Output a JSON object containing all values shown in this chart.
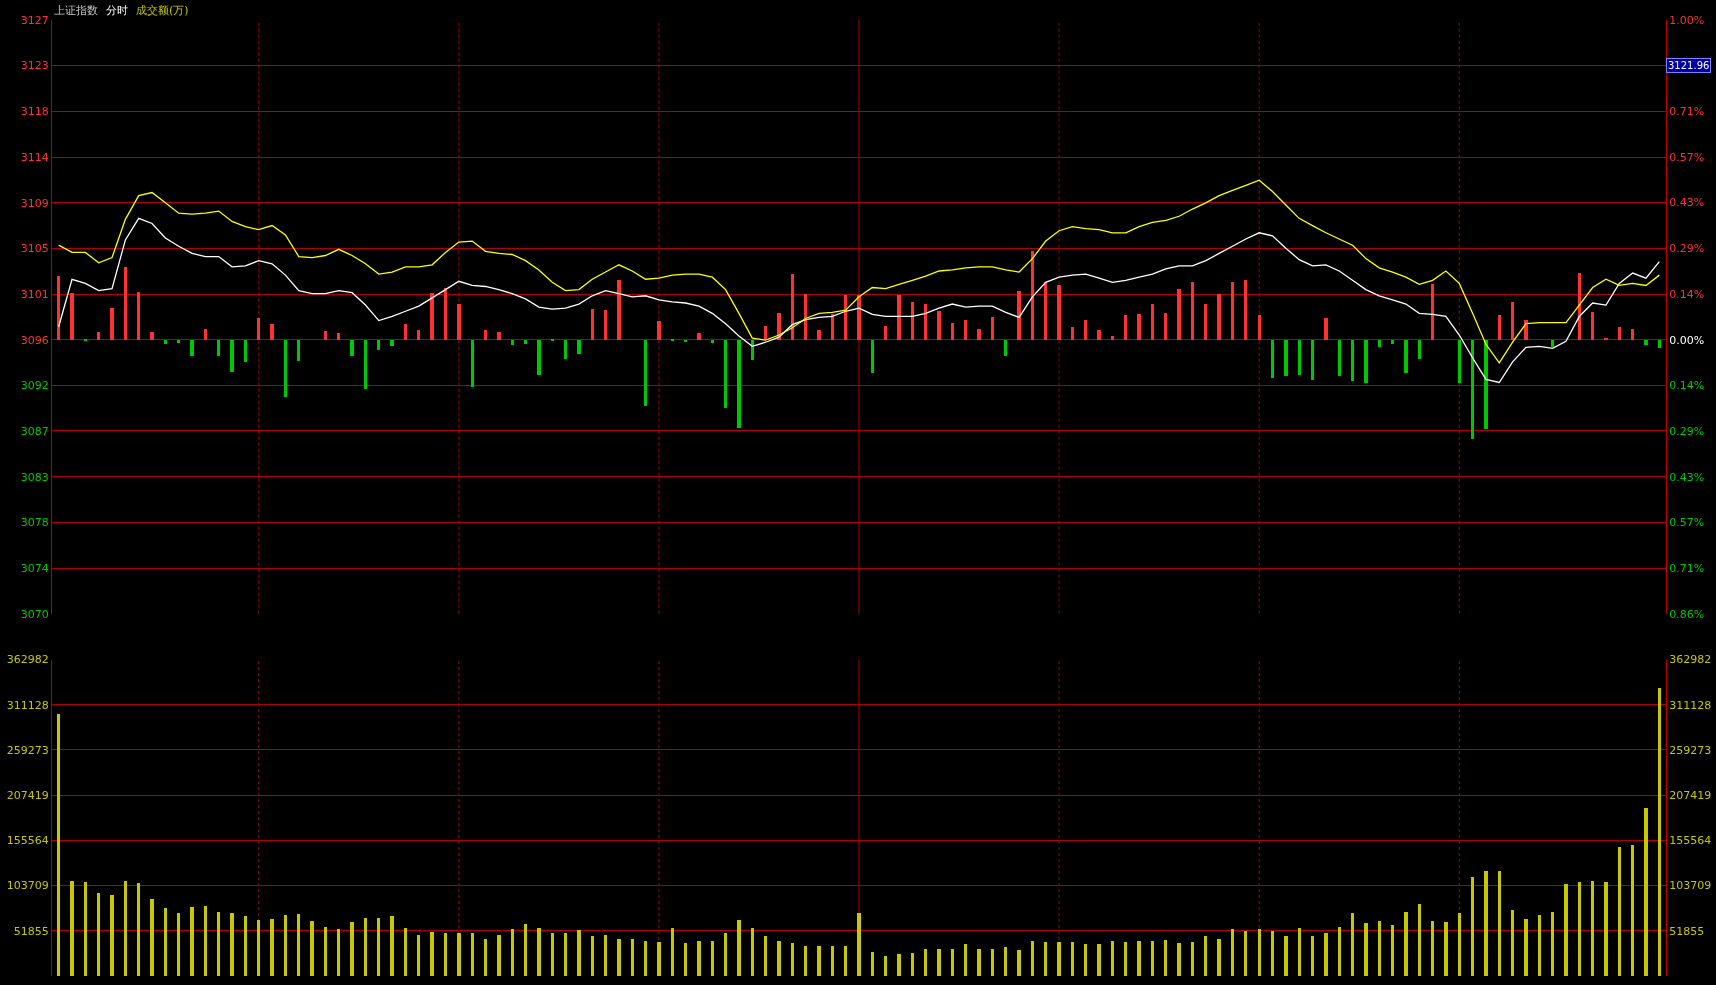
{
  "chart_data": [
    {
      "type": "line",
      "title": "上证指数",
      "subtitle": "分时",
      "categories": [
        null,
        null,
        null,
        null,
        null,
        null,
        null,
        null,
        null,
        null,
        null,
        null,
        null,
        null,
        null,
        null,
        null,
        null,
        null,
        null,
        null,
        null,
        null,
        null,
        null,
        null,
        null,
        null,
        null,
        null,
        null,
        null,
        null,
        null,
        null,
        null,
        null,
        null,
        null,
        null,
        null,
        null,
        null,
        null,
        null,
        null,
        null,
        null,
        null,
        null,
        null,
        null,
        null,
        null,
        null,
        null,
        null,
        null,
        null,
        null,
        null,
        null,
        null,
        null,
        null,
        null,
        null,
        null,
        null,
        null,
        null,
        null,
        null,
        null,
        null,
        null,
        null,
        null,
        null,
        null,
        null,
        null,
        null,
        null,
        null,
        null,
        null,
        null,
        null,
        null,
        null,
        null,
        null,
        null,
        null,
        null,
        null,
        null,
        null,
        null,
        null,
        null,
        null,
        null,
        null,
        null,
        null,
        null,
        null,
        null,
        null,
        null,
        null,
        null,
        null,
        null,
        null,
        null,
        null,
        null,
        null
      ],
      "ylim": [
        3069.61,
        3127.11
      ],
      "yticks": [
        {
          "value": 3127.11,
          "label": "3127"
        },
        {
          "value": 3122.69,
          "label": "3123"
        },
        {
          "value": 3118.27,
          "label": "3118"
        },
        {
          "value": 3113.84,
          "label": "3114"
        },
        {
          "value": 3109.42,
          "label": "3109"
        },
        {
          "value": 3105.0,
          "label": "3105"
        },
        {
          "value": 3100.57,
          "label": "3101"
        },
        {
          "value": 3096.15,
          "label": "3096"
        },
        {
          "value": 3091.73,
          "label": "3092"
        },
        {
          "value": 3087.31,
          "label": "3087"
        },
        {
          "value": 3082.88,
          "label": "3083"
        },
        {
          "value": 3078.46,
          "label": "3078"
        },
        {
          "value": 3074.03,
          "label": "3074"
        },
        {
          "value": 3069.61,
          "label": "3070"
        }
      ],
      "y2lim": [
        -0.857,
        1.0
      ],
      "y2ticks": [
        {
          "value": 1.0,
          "label": "1.00%"
        },
        {
          "value": 0.857,
          "label": null
        },
        {
          "value": 0.714,
          "label": "0.71%"
        },
        {
          "value": 0.571,
          "label": "0.57%"
        },
        {
          "value": 0.429,
          "label": "0.43%"
        },
        {
          "value": 0.286,
          "label": "0.29%"
        },
        {
          "value": 0.143,
          "label": "0.14%"
        },
        {
          "value": 0,
          "label": "0.00%"
        },
        {
          "value": -0.143,
          "label": "0.14%"
        },
        {
          "value": -0.286,
          "label": "0.29%"
        },
        {
          "value": -0.429,
          "label": "0.43%"
        },
        {
          "value": -0.571,
          "label": "0.57%"
        },
        {
          "value": -0.714,
          "label": "0.71%"
        },
        {
          "value": -0.857,
          "label": "0.86%"
        }
      ],
      "tick_labels": "y",
      "grid": true,
      "annotations": [
        "成交额(万)",
        "3121.96"
      ],
      "series": [
        {
          "type": "bar",
          "base": [
            3096.15,
            3096.15,
            3096.15,
            3096.15,
            3096.15,
            3096.15,
            3096.15,
            3096.15,
            3096.15,
            3096.15,
            3096.15,
            3096.15,
            3096.15,
            3096.15,
            3096.15,
            3096.15,
            3096.15,
            3096.15,
            3096.15,
            null,
            3096.15,
            3096.15,
            3096.15,
            3096.15,
            3096.15,
            3096.15,
            3096.15,
            3096.15,
            3096.15,
            3096.15,
            3096.15,
            3096.15,
            3096.15,
            3096.15,
            3096.15,
            3096.15,
            3096.15,
            3096.15,
            3096.15,
            3096.15,
            3096.15,
            3096.15,
            3096.15,
            null,
            3096.15,
            3096.15,
            3096.15,
            3096.15,
            3096.15,
            3096.15,
            3096.15,
            3096.15,
            3096.15,
            3096.15,
            3096.15,
            3096.15,
            3096.15,
            3096.15,
            3096.15,
            3096.15,
            3096.15,
            3096.15,
            3096.15,
            3096.15,
            3096.15,
            3096.15,
            3096.15,
            3096.15,
            3096.15,
            3096.15,
            3096.15,
            3096.15,
            3096.15,
            3096.15,
            3096.15,
            3096.15,
            3096.15,
            3096.15,
            3096.15,
            3096.15,
            3096.15,
            3096.15,
            3096.15,
            3096.15,
            3096.15,
            3096.15,
            3096.15,
            3096.15,
            3096.15,
            3096.15,
            3096.15,
            3096.15,
            3096.15,
            3096.15,
            3096.15,
            3096.15,
            3096.15,
            3096.15,
            3096.15,
            3096.15,
            3096.15,
            3096.15,
            3096.15,
            3096.15,
            null,
            3096.15,
            3096.15,
            3096.15,
            3096.15,
            3096.15,
            3096.15,
            null,
            3096.15,
            null,
            3096.15,
            3096.15,
            3096.15,
            3096.15,
            3096.15,
            3096.15,
            3096.15
          ],
          "values": [
            6.2,
            4.5,
            -0.1,
            0.7,
            3.1,
            7.0,
            4.6,
            0.7,
            -0.4,
            -0.3,
            -1.6,
            1.0,
            -1.6,
            -3.1,
            -2.2,
            2.1,
            1.5,
            -5.6,
            -2.1,
            null,
            0.8,
            0.6,
            -1.6,
            -4.8,
            -1.0,
            -0.6,
            1.5,
            0.9,
            4.5,
            5.0,
            3.5,
            -4.6,
            0.9,
            0.7,
            -0.5,
            -0.4,
            -3.4,
            -0.1,
            -1.9,
            -1.4,
            3.0,
            2.9,
            5.8,
            null,
            -6.4,
            1.8,
            -0.1,
            -0.2,
            0.6,
            -0.3,
            -6.6,
            -8.6,
            -2.0,
            1.3,
            2.6,
            6.4,
            4.4,
            0.9,
            2.5,
            4.3,
            4.3,
            -3.2,
            1.3,
            4.3,
            3.6,
            3.5,
            2.8,
            1.6,
            1.9,
            1.0,
            2.2,
            -1.6,
            4.7,
            8.6,
            5.6,
            5.3,
            1.2,
            1.9,
            0.9,
            0.4,
            2.4,
            2.5,
            3.5,
            2.6,
            4.9,
            5.6,
            3.5,
            4.4,
            5.6,
            5.8,
            2.4,
            -3.7,
            -3.5,
            -3.4,
            -3.9,
            2.1,
            -3.5,
            -4.0,
            -4.2,
            -0.7,
            -0.4,
            -3.2,
            -1.9,
            5.4,
            null,
            -4.2,
            -9.6,
            -8.7,
            2.4,
            3.6,
            1.9,
            null,
            -0.7,
            null,
            6.5,
            2.7,
            0.2,
            1.2,
            1.0,
            -0.5,
            -0.8
          ],
          "colors": [
            "#ff3232",
            "#ff3232",
            "#00c800",
            "#ff3232",
            "#ff3232",
            "#ff3232",
            "#ff3232",
            "#ff3232",
            "#00c800",
            "#00c800",
            "#00c800",
            "#ff3232",
            "#00c800",
            "#00c800",
            "#00c800",
            "#ff3232",
            "#ff3232",
            "#00c800",
            "#00c800",
            "#ff3232",
            "#ff3232",
            "#ff3232",
            "#00c800",
            "#00c800",
            "#00c800",
            "#00c800",
            "#ff3232",
            "#ff3232",
            "#ff3232",
            "#ff3232",
            "#ff3232",
            "#00c800",
            "#ff3232",
            "#ff3232",
            "#00c800",
            "#00c800",
            "#00c800",
            "#00c800",
            "#00c800",
            "#00c800",
            "#ff3232",
            "#ff3232",
            "#ff3232",
            "#ff3232",
            "#00c800",
            "#ff3232",
            "#00c800",
            "#00c800",
            "#ff3232",
            "#00c800",
            "#00c800",
            "#00c800",
            "#00c800",
            "#ff3232",
            "#ff3232",
            "#ff3232",
            "#ff3232",
            "#ff3232",
            "#ff3232",
            "#ff3232",
            "#ff3232",
            "#00c800",
            "#ff3232",
            "#ff3232",
            "#ff3232",
            "#ff3232",
            "#ff3232",
            "#ff3232",
            "#ff3232",
            "#ff3232",
            "#ff3232",
            "#00c800",
            "#ff3232",
            "#ff3232",
            "#ff3232",
            "#ff3232",
            "#ff3232",
            "#ff3232",
            "#ff3232",
            "#ff3232",
            "#ff3232",
            "#ff3232",
            "#ff3232",
            "#ff3232",
            "#ff3232",
            "#ff3232",
            "#ff3232",
            "#ff3232",
            "#ff3232",
            "#ff3232",
            "#ff3232",
            "#00c800",
            "#00c800",
            "#00c800",
            "#00c800",
            "#ff3232",
            "#00c800",
            "#00c800",
            "#00c800",
            "#00c800",
            "#00c800",
            "#00c800",
            "#00c800",
            "#ff3232",
            "#ff3232",
            "#00c800",
            "#00c800",
            "#00c800",
            "#ff3232",
            "#ff3232",
            "#ff3232",
            "#ff3232",
            "#00c800",
            "#ff3232",
            "#ff3232",
            "#ff3232",
            "#ff3232",
            "#ff3232",
            "#ff3232",
            "#00c800",
            "#00c800"
          ]
        },
        {
          "type": "line",
          "color": "#ffffff",
          "values": [
            3097.4,
            3102.0,
            3101.6,
            3100.9,
            3101.1,
            3105.8,
            3107.9,
            3107.4,
            3106.0,
            3105.2,
            3104.5,
            3104.2,
            3104.2,
            3103.2,
            3103.3,
            3103.8,
            3103.5,
            3102.4,
            3100.9,
            3100.6,
            3100.6,
            3100.9,
            3100.7,
            3099.5,
            3098.0,
            3098.4,
            3098.9,
            3099.4,
            3100.2,
            3101.0,
            3101.8,
            3101.4,
            3101.3,
            3101.0,
            3100.6,
            3100.1,
            3099.3,
            3099.1,
            3099.2,
            3099.6,
            3100.4,
            3100.9,
            3100.6,
            3100.3,
            3100.4,
            3100.0,
            3099.8,
            3099.7,
            3099.4,
            3098.7,
            3097.7,
            3096.5,
            3095.5,
            3095.9,
            3096.4,
            3097.6,
            3098.1,
            3098.3,
            3098.4,
            3098.9,
            3099.2,
            3098.6,
            3098.4,
            3098.4,
            3098.4,
            3098.7,
            3099.2,
            3099.6,
            3099.3,
            3099.4,
            3099.4,
            3098.8,
            3098.3,
            3100.3,
            3101.7,
            3102.2,
            3102.4,
            3102.5,
            3102.1,
            3101.7,
            3101.9,
            3102.2,
            3102.5,
            3103.0,
            3103.3,
            3103.3,
            3103.8,
            3104.5,
            3105.2,
            3105.9,
            3106.5,
            3106.2,
            3105.0,
            3103.9,
            3103.3,
            3103.4,
            3102.8,
            3101.9,
            3101.0,
            3100.4,
            3100.0,
            3099.6,
            3098.7,
            3098.6,
            3098.4,
            3096.6,
            3094.4,
            3092.3,
            3092.0,
            3094.0,
            3095.4,
            3095.5,
            3095.3,
            3096.0,
            3098.4,
            3099.7,
            3099.5,
            3101.6,
            3102.6,
            3102.1,
            3103.7
          ]
        },
        {
          "type": "line",
          "color": "#ffff00",
          "values": [
            3105.3,
            3104.6,
            3104.6,
            3103.6,
            3104.1,
            3107.8,
            3110.1,
            3110.4,
            3109.4,
            3108.4,
            3108.3,
            3108.4,
            3108.6,
            3107.6,
            3107.1,
            3106.8,
            3107.2,
            3106.3,
            3104.2,
            3104.1,
            3104.3,
            3104.9,
            3104.3,
            3103.5,
            3102.5,
            3102.7,
            3103.2,
            3103.2,
            3103.4,
            3104.6,
            3105.6,
            3105.7,
            3104.7,
            3104.5,
            3104.4,
            3103.8,
            3102.9,
            3101.7,
            3100.9,
            3101.0,
            3102.0,
            3102.7,
            3103.4,
            3102.8,
            3102.0,
            3102.1,
            3102.4,
            3102.5,
            3102.5,
            3102.2,
            3101.0,
            3098.7,
            3096.3,
            3096.1,
            3096.6,
            3097.3,
            3098.2,
            3098.7,
            3098.8,
            3099.0,
            3100.3,
            3101.2,
            3101.1,
            3101.5,
            3101.9,
            3102.3,
            3102.8,
            3102.9,
            3103.1,
            3103.2,
            3103.2,
            3102.9,
            3102.7,
            3104.0,
            3105.7,
            3106.7,
            3107.1,
            3106.9,
            3106.8,
            3106.5,
            3106.5,
            3107.1,
            3107.5,
            3107.7,
            3108.1,
            3108.8,
            3109.4,
            3110.1,
            3110.6,
            3111.1,
            3111.6,
            3110.5,
            3109.2,
            3107.9,
            3107.2,
            3106.5,
            3105.9,
            3105.3,
            3104.0,
            3103.1,
            3102.7,
            3102.2,
            3101.5,
            3101.9,
            3102.8,
            3101.6,
            3098.7,
            3095.7,
            3093.9,
            3095.9,
            3097.7,
            3097.8,
            3097.8,
            3097.8,
            3099.5,
            3101.2,
            3102.0,
            3101.4,
            3101.6,
            3101.4,
            3102.4
          ]
        }
      ]
    },
    {
      "type": "bar",
      "color": "#c8c800",
      "categories": [
        null,
        null,
        null,
        null,
        null,
        null,
        null,
        null,
        null,
        null,
        null,
        null,
        null,
        null,
        null,
        null,
        null,
        null,
        null,
        null,
        null,
        null,
        null,
        null,
        null,
        null,
        null,
        null,
        null,
        null,
        null,
        null,
        null,
        null,
        null,
        null,
        null,
        null,
        null,
        null,
        null,
        null,
        null,
        null,
        null,
        null,
        null,
        null,
        null,
        null,
        null,
        null,
        null,
        null,
        null,
        null,
        null,
        null,
        null,
        null,
        null,
        null,
        null,
        null,
        null,
        null,
        null,
        null,
        null,
        null,
        null,
        null,
        null,
        null,
        null,
        null,
        null,
        null,
        null,
        null,
        null,
        null,
        null,
        null,
        null,
        null,
        null,
        null,
        null,
        null,
        null,
        null,
        null,
        null,
        null,
        null,
        null,
        null,
        null,
        null,
        null,
        null,
        null,
        null,
        null,
        null,
        null,
        null,
        null,
        null,
        null,
        null,
        null,
        null,
        null,
        null,
        null,
        null,
        null,
        null,
        null
      ],
      "ylim": [
        0,
        362982
      ],
      "yticks": [
        51855,
        103709,
        155564,
        207419,
        259273,
        311128,
        362982
      ],
      "y2lim": [
        0,
        362982
      ],
      "y2ticks": [
        51855,
        103709,
        155564,
        207419,
        259273,
        311128,
        362982
      ],
      "tick_labels": "y",
      "grid": true,
      "values": [
        301000,
        109000,
        108000,
        96000,
        93000,
        110000,
        107000,
        89000,
        79000,
        73000,
        80000,
        81000,
        74000,
        73000,
        69000,
        65000,
        66000,
        70000,
        72000,
        64000,
        57000,
        54000,
        63000,
        67000,
        67000,
        69000,
        56000,
        48000,
        51000,
        50000,
        50000,
        50000,
        43000,
        48000,
        54000,
        60000,
        56000,
        50000,
        50000,
        53000,
        46000,
        47000,
        43000,
        43000,
        41000,
        40000,
        55000,
        38000,
        41000,
        41000,
        50000,
        65000,
        55000,
        46000,
        41000,
        38000,
        35000,
        35000,
        35000,
        35000,
        73000,
        28000,
        24000,
        26000,
        27000,
        32000,
        32000,
        32000,
        37000,
        31000,
        32000,
        34000,
        30000,
        41000,
        40000,
        40000,
        39000,
        37000,
        37000,
        41000,
        40000,
        41000,
        41000,
        42000,
        38000,
        40000,
        46000,
        43000,
        54000,
        52000,
        54000,
        52000,
        46000,
        56000,
        46000,
        50000,
        57000,
        73000,
        61000,
        64000,
        59000,
        74000,
        83000,
        64000,
        63000,
        73000,
        114000,
        121000,
        121000,
        76000,
        66000,
        70000,
        74000,
        106000,
        108000,
        110000,
        108000,
        149000,
        151000,
        193000,
        331000
      ]
    }
  ]
}
